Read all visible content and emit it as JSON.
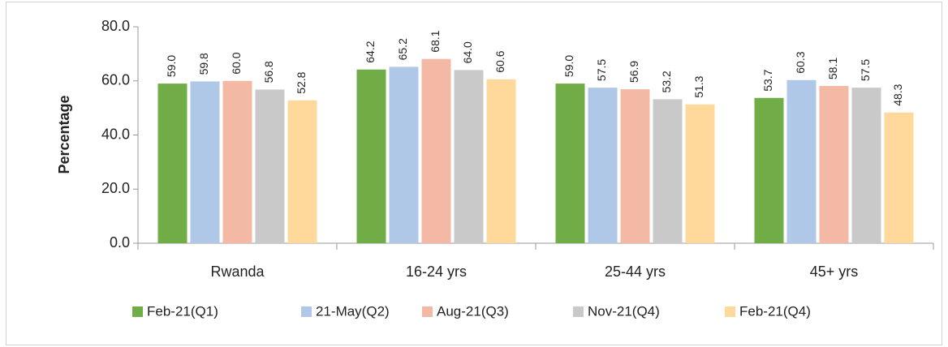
{
  "chart_data": {
    "type": "bar",
    "y_label": "Percentage",
    "categories": [
      "Rwanda",
      "16-24 yrs",
      "25-44 yrs",
      "45+ yrs"
    ],
    "series": [
      {
        "name": "Feb-21(Q1)",
        "color": "#70ad47",
        "values": [
          59.0,
          64.2,
          59.0,
          53.7
        ],
        "value_labels": [
          "59.0",
          "64.2",
          "59.0",
          "53.7"
        ]
      },
      {
        "name": "21-May(Q2)",
        "color": "#b0c8e8",
        "values": [
          59.8,
          65.2,
          57.5,
          60.3
        ],
        "value_labels": [
          "59.8",
          "65.2",
          "57.5",
          "60.3"
        ]
      },
      {
        "name": "Aug-21(Q3)",
        "color": "#f4b9a5",
        "values": [
          60.0,
          68.1,
          56.9,
          58.1
        ],
        "value_labels": [
          "60.0",
          "68.1",
          "56.9",
          "58.1"
        ]
      },
      {
        "name": "Nov-21(Q4)",
        "color": "#c9c9c9",
        "values": [
          56.8,
          64.0,
          53.2,
          57.5
        ],
        "value_labels": [
          "56.8",
          "64.0",
          "53.2",
          "57.5"
        ]
      },
      {
        "name": "Feb-21(Q4)",
        "color": "#ffd99b",
        "values": [
          52.8,
          60.6,
          51.3,
          48.3
        ],
        "value_labels": [
          "52.8",
          "60.6",
          "51.3",
          "48.3"
        ]
      }
    ],
    "ylim": [
      0,
      80
    ],
    "yticks": [
      {
        "value": 0,
        "label": "0.0"
      },
      {
        "value": 20,
        "label": "20.0"
      },
      {
        "value": 40,
        "label": "40.0"
      },
      {
        "value": 60,
        "label": "60.0"
      },
      {
        "value": 80,
        "label": "80.0"
      }
    ],
    "legend": "bottom"
  }
}
